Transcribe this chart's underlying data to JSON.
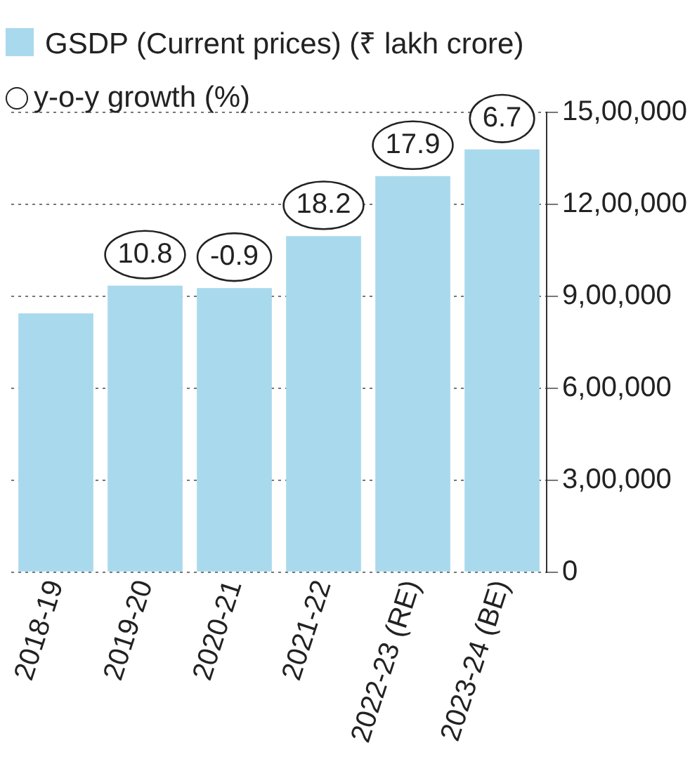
{
  "chart_data": {
    "type": "bar",
    "categories": [
      "2018-19",
      "2019-20",
      "2020-21",
      "2021-22",
      "2022-23 (RE)",
      "2023-24 (BE)"
    ],
    "series": [
      {
        "name": "GSDP (Current prices) (₹ lakh crore)",
        "color": "#a9d9ec",
        "values": [
          844000,
          935000,
          927000,
          1096000,
          1292000,
          1379000
        ]
      }
    ],
    "ylim": [
      0,
      1500000
    ],
    "yticks": [
      0,
      {
        "value": 300000,
        "label": "3,00,000"
      },
      {
        "value": 600000,
        "label": "6,00,000"
      },
      {
        "value": 900000,
        "label": "9,00,000"
      },
      {
        "value": 1200000,
        "label": "12,00,000"
      },
      {
        "value": 1500000,
        "label": "15,00,000"
      }
    ],
    "grid": "y",
    "legend": "top left",
    "annotations": [
      "y-o-y growth (%)",
      {
        "text": "10.8",
        "x": "2019-20",
        "y": 935000
      },
      {
        "text": "-0.9",
        "x": "2020-21",
        "y": 927000
      },
      {
        "text": "18.2",
        "x": "2021-22",
        "y": 1096000
      },
      {
        "text": "17.9",
        "x": "2022-23 (RE)",
        "y": 1292000
      },
      {
        "text": "6.7",
        "x": "2023-24 (BE)",
        "y": 1379000
      }
    ]
  }
}
